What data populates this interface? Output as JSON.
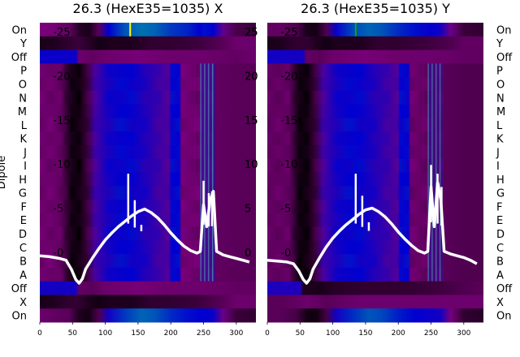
{
  "chart_data": {
    "type": "heatmap",
    "ylabel": "Dipole",
    "row_labels": [
      "On",
      "Y",
      "Off",
      "P",
      "O",
      "N",
      "M",
      "L",
      "K",
      "J",
      "I",
      "H",
      "G",
      "F",
      "E",
      "D",
      "C",
      "B",
      "A",
      "Off",
      "X",
      "On"
    ],
    "x_ticks": [
      "0",
      "50",
      "100",
      "150",
      "200",
      "250",
      "300"
    ],
    "x_range": [
      0,
      330
    ],
    "overlay_y_ticks": [
      "0",
      "5",
      "10",
      "15",
      "20",
      "25"
    ],
    "overlay_y_range": [
      -3,
      27
    ],
    "colormap": [
      "#000000",
      "#7b007b",
      "#0000d0",
      "#00b0a0",
      "#ffff00"
    ],
    "panels": [
      {
        "title": "26.3 (HexE35=1035) X",
        "channel_rows": [
          {
            "label": "On",
            "x": [
              0,
              20,
              45,
              60,
              75,
              90,
              105,
              130,
              155,
              175,
              200,
              225,
              245,
              250,
              265,
              280,
              300,
              330
            ],
            "v": [
              0.25,
              0.24,
              0.2,
              0.08,
              0.05,
              0.18,
              0.5,
              0.62,
              0.66,
              0.64,
              0.58,
              0.55,
              0.5,
              0.52,
              0.5,
              0.3,
              0.15,
              0.12
            ]
          },
          {
            "label": "Y",
            "x": [
              0,
              20,
              45,
              60,
              75,
              90,
              110,
              140,
              170,
              200,
              240,
              280,
              300,
              330
            ],
            "v": [
              0.05,
              0.06,
              0.1,
              0.12,
              0.08,
              0.04,
              0.06,
              0.06,
              0.1,
              0.1,
              0.12,
              0.18,
              0.22,
              0.22
            ]
          },
          {
            "label": "Off",
            "x": [
              0,
              55,
              60,
              80,
              100,
              150,
              200,
              250,
              300,
              330
            ],
            "v": [
              0.48,
              0.48,
              0.22,
              0.2,
              0.22,
              0.24,
              0.22,
              0.22,
              0.2,
              0.22
            ]
          }
        ],
        "body_profile": {
          "x": [
            0,
            20,
            40,
            50,
            60,
            75,
            90,
            105,
            130,
            155,
            175,
            200,
            225,
            245,
            250,
            265,
            270,
            300,
            330
          ],
          "v": [
            0.22,
            0.22,
            0.2,
            0.12,
            0.04,
            0.03,
            0.12,
            0.36,
            0.46,
            0.5,
            0.49,
            0.44,
            0.38,
            0.34,
            0.5,
            0.5,
            0.24,
            0.22,
            0.22
          ],
          "right_limit": 265
        },
        "body_tail": {
          "x": [
            265,
            300,
            330
          ],
          "v": [
            0.2,
            0.18,
            0.18
          ]
        },
        "bottom_rows": [
          {
            "label": "Off",
            "x": [
              0,
              55,
              60,
              80,
              100,
              150,
              200,
              250,
              300,
              330
            ],
            "v": [
              0.46,
              0.46,
              0.2,
              0.18,
              0.22,
              0.24,
              0.22,
              0.22,
              0.2,
              0.2
            ]
          },
          {
            "label": "X",
            "x": [
              0,
              20,
              45,
              60,
              75,
              90,
              110,
              140,
              170,
              200,
              240,
              280,
              300,
              330
            ],
            "v": [
              0.05,
              0.06,
              0.1,
              0.1,
              0.06,
              0.04,
              0.06,
              0.06,
              0.1,
              0.1,
              0.12,
              0.18,
              0.22,
              0.22
            ]
          },
          {
            "label": "On",
            "x": [
              0,
              20,
              45,
              60,
              75,
              90,
              105,
              130,
              155,
              175,
              200,
              225,
              245,
              250,
              265,
              280,
              300,
              330
            ],
            "v": [
              0.22,
              0.2,
              0.18,
              0.06,
              0.04,
              0.16,
              0.46,
              0.58,
              0.64,
              0.62,
              0.56,
              0.52,
              0.5,
              0.5,
              0.48,
              0.28,
              0.12,
              0.1
            ]
          }
        ],
        "marker_x": 138,
        "marker_color": "#ffff00",
        "overlay_curve": {
          "x": [
            0,
            15,
            30,
            40,
            48,
            55,
            60,
            65,
            70,
            80,
            90,
            100,
            110,
            120,
            130,
            140,
            150,
            160,
            170,
            180,
            190,
            200,
            210,
            220,
            230,
            240,
            245,
            250,
            255,
            260,
            265,
            270,
            280,
            290,
            300,
            310,
            320
          ],
          "y": [
            -0.3,
            -0.4,
            -0.6,
            -0.8,
            -1.8,
            -3.0,
            -3.4,
            -2.9,
            -1.8,
            -0.6,
            0.5,
            1.5,
            2.3,
            3.0,
            3.6,
            4.2,
            4.7,
            5.0,
            4.6,
            4.0,
            3.2,
            2.3,
            1.5,
            0.8,
            0.3,
            0.0,
            0.2,
            5.5,
            3.0,
            6.0,
            7.0,
            0.2,
            -0.2,
            -0.4,
            -0.6,
            -0.8,
            -1.0
          ],
          "spikes": [
            {
              "x": 135,
              "y": 9.0
            },
            {
              "x": 145,
              "y": 6.0
            },
            {
              "x": 155,
              "y": 3.2
            },
            {
              "x": 250,
              "y": 8.2
            },
            {
              "x": 258,
              "y": 6.8
            },
            {
              "x": 263,
              "y": 7.0
            }
          ]
        }
      },
      {
        "title": "26.3 (HexE35=1035) Y",
        "channel_rows": [
          {
            "label": "On",
            "x": [
              0,
              20,
              45,
              60,
              75,
              90,
              105,
              130,
              155,
              175,
              200,
              225,
              245,
              250,
              265,
              280,
              300,
              330
            ],
            "v": [
              0.2,
              0.2,
              0.16,
              0.05,
              0.04,
              0.16,
              0.48,
              0.6,
              0.64,
              0.62,
              0.56,
              0.52,
              0.48,
              0.5,
              0.46,
              0.28,
              0.12,
              0.1
            ]
          },
          {
            "label": "Y",
            "x": [
              0,
              20,
              45,
              60,
              75,
              90,
              110,
              140,
              170,
              200,
              240,
              280,
              300,
              330
            ],
            "v": [
              0.05,
              0.06,
              0.1,
              0.1,
              0.06,
              0.04,
              0.06,
              0.06,
              0.1,
              0.1,
              0.12,
              0.16,
              0.2,
              0.2
            ]
          },
          {
            "label": "Off",
            "x": [
              0,
              55,
              60,
              80,
              100,
              150,
              200,
              250,
              300,
              330
            ],
            "v": [
              0.46,
              0.46,
              0.2,
              0.18,
              0.22,
              0.24,
              0.22,
              0.22,
              0.2,
              0.2
            ]
          }
        ],
        "body_profile": {
          "x": [
            0,
            20,
            40,
            50,
            60,
            75,
            90,
            105,
            130,
            155,
            175,
            200,
            225,
            245,
            250,
            265,
            270,
            300,
            330
          ],
          "v": [
            0.2,
            0.2,
            0.2,
            0.12,
            0.03,
            0.03,
            0.12,
            0.36,
            0.46,
            0.5,
            0.49,
            0.44,
            0.38,
            0.34,
            0.5,
            0.5,
            0.22,
            0.2,
            0.2
          ],
          "right_limit": 268
        },
        "body_tail": {
          "x": [
            268,
            300,
            330
          ],
          "v": [
            0.18,
            0.16,
            0.16
          ]
        },
        "bottom_rows": [
          {
            "label": "Off",
            "x": [
              0,
              50,
              55,
              80,
              100,
              150,
              200,
              250,
              300,
              330
            ],
            "v": [
              0.44,
              0.44,
              0.06,
              0.05,
              0.08,
              0.1,
              0.1,
              0.12,
              0.16,
              0.18
            ]
          },
          {
            "label": "X",
            "x": [
              0,
              20,
              45,
              60,
              75,
              90,
              110,
              140,
              170,
              200,
              240,
              280,
              300,
              330
            ],
            "v": [
              0.18,
              0.18,
              0.2,
              0.22,
              0.2,
              0.18,
              0.2,
              0.22,
              0.22,
              0.22,
              0.22,
              0.22,
              0.22,
              0.22
            ]
          },
          {
            "label": "On",
            "x": [
              0,
              20,
              45,
              60,
              75,
              90,
              105,
              130,
              155,
              175,
              200,
              225,
              245,
              250,
              265,
              280,
              300,
              330
            ],
            "v": [
              0.18,
              0.18,
              0.14,
              0.04,
              0.03,
              0.14,
              0.46,
              0.56,
              0.62,
              0.6,
              0.54,
              0.5,
              0.48,
              0.48,
              0.46,
              0.26,
              0.1,
              0.08
            ]
          }
        ],
        "marker_x": 135,
        "marker_color": "#00b000",
        "overlay_curve": {
          "x": [
            0,
            15,
            30,
            40,
            48,
            55,
            60,
            65,
            70,
            80,
            90,
            100,
            110,
            120,
            130,
            140,
            150,
            160,
            170,
            180,
            190,
            200,
            210,
            220,
            230,
            240,
            245,
            250,
            255,
            260,
            265,
            270,
            280,
            290,
            300,
            310,
            320
          ],
          "y": [
            -0.8,
            -0.9,
            -1.0,
            -1.2,
            -2.0,
            -3.0,
            -3.4,
            -2.9,
            -1.8,
            -0.5,
            0.7,
            1.7,
            2.5,
            3.2,
            3.8,
            4.4,
            4.9,
            5.1,
            4.7,
            4.1,
            3.3,
            2.4,
            1.6,
            0.9,
            0.3,
            0.0,
            0.2,
            7.5,
            3.0,
            8.0,
            6.0,
            0.2,
            -0.1,
            -0.3,
            -0.5,
            -0.8,
            -1.2
          ],
          "spikes": [
            {
              "x": 135,
              "y": 9.0
            },
            {
              "x": 145,
              "y": 6.5
            },
            {
              "x": 155,
              "y": 3.5
            },
            {
              "x": 250,
              "y": 10.0
            },
            {
              "x": 260,
              "y": 9.0
            },
            {
              "x": 266,
              "y": 7.5
            }
          ]
        }
      }
    ]
  }
}
